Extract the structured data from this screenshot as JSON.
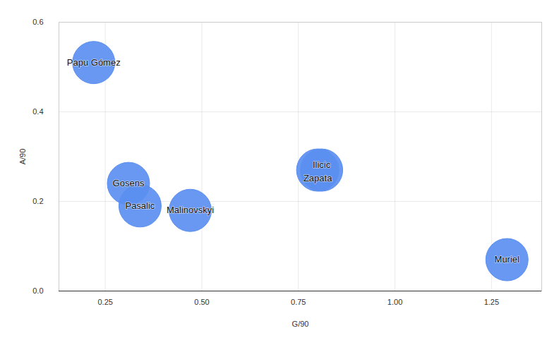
{
  "chart_data": {
    "type": "scatter",
    "x_label": "G/90",
    "y_label": "A/90",
    "labels": [
      "Papu Gómez",
      "Gosens",
      "Pasalic",
      "Malinovskyi",
      "Ilicic",
      "Zapata",
      "Muriel"
    ],
    "x": [
      0.22,
      0.31,
      0.34,
      0.47,
      0.81,
      0.8,
      1.29
    ],
    "values": [
      0.51,
      0.24,
      0.19,
      0.18,
      0.27,
      0.27,
      0.07
    ],
    "color": "#5b8ff0",
    "xlim": [
      0.13,
      1.38
    ],
    "xticks": [
      0.25,
      {
        "value": 0.5,
        "label": "0.50"
      },
      0.75,
      {
        "value": 1,
        "label": "1.00"
      },
      1.25
    ],
    "ylim": [
      0,
      0.6
    ],
    "yticks": [
      {
        "value": 0,
        "label": "0.0"
      },
      0.2,
      0.4,
      0.6
    ],
    "grid": true
  }
}
